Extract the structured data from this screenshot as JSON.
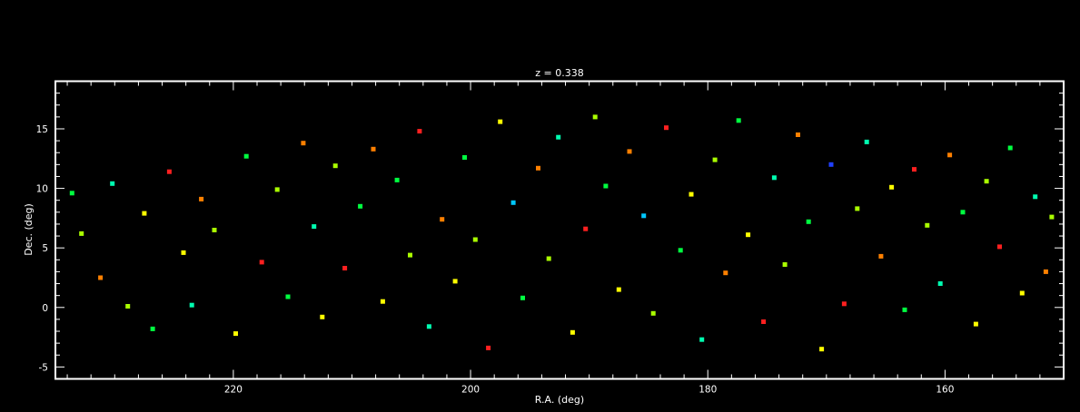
{
  "chart_data": {
    "type": "scatter",
    "title": "z = 0.338",
    "xlabel": "R.A. (deg)",
    "ylabel": "Dec. (deg)",
    "xlim": [
      235,
      150
    ],
    "ylim": [
      -6,
      19
    ],
    "x_axis_reversed": true,
    "xticks": [
      220,
      200,
      180,
      160
    ],
    "yticks": [
      -5,
      0,
      5,
      10,
      15
    ],
    "grid": false,
    "legend": "none",
    "background_color": "#000000",
    "axes_color": "#ffffff",
    "point_colors": [
      "#ff2020",
      "#ff8000",
      "#ffff00",
      "#aaff00",
      "#00ff40",
      "#00ffb0",
      "#00c8ff",
      "#2040ff"
    ],
    "series": [
      {
        "points": [
          [
            233.6,
            9.6,
            4
          ],
          [
            232.8,
            6.2,
            3
          ],
          [
            231.2,
            2.5,
            1
          ],
          [
            230.2,
            10.4,
            5
          ],
          [
            228.9,
            0.1,
            3
          ],
          [
            227.5,
            7.9,
            2
          ],
          [
            226.8,
            -1.8,
            4
          ],
          [
            225.4,
            11.4,
            0
          ],
          [
            224.2,
            4.6,
            2
          ],
          [
            223.5,
            0.2,
            5
          ],
          [
            222.7,
            9.1,
            1
          ],
          [
            221.6,
            6.5,
            3
          ],
          [
            219.8,
            -2.2,
            2
          ],
          [
            218.9,
            12.7,
            4
          ],
          [
            217.6,
            3.8,
            0
          ],
          [
            216.3,
            9.9,
            3
          ],
          [
            215.4,
            0.9,
            4
          ],
          [
            214.1,
            13.8,
            1
          ],
          [
            213.2,
            6.8,
            5
          ],
          [
            212.5,
            -0.8,
            2
          ],
          [
            211.4,
            11.9,
            3
          ],
          [
            210.6,
            3.3,
            0
          ],
          [
            209.3,
            8.5,
            4
          ],
          [
            208.2,
            13.3,
            1
          ],
          [
            207.4,
            0.5,
            2
          ],
          [
            206.2,
            10.7,
            4
          ],
          [
            205.1,
            4.4,
            3
          ],
          [
            204.3,
            14.8,
            0
          ],
          [
            203.5,
            -1.6,
            5
          ],
          [
            202.4,
            7.4,
            1
          ],
          [
            201.3,
            2.2,
            2
          ],
          [
            200.5,
            12.6,
            4
          ],
          [
            199.6,
            5.7,
            3
          ],
          [
            198.5,
            -3.4,
            0
          ],
          [
            197.5,
            15.6,
            2
          ],
          [
            196.4,
            8.8,
            6
          ],
          [
            195.6,
            0.8,
            4
          ],
          [
            194.3,
            11.7,
            1
          ],
          [
            193.4,
            4.1,
            3
          ],
          [
            192.6,
            14.3,
            5
          ],
          [
            191.4,
            -2.1,
            2
          ],
          [
            190.3,
            6.6,
            0
          ],
          [
            189.5,
            16.0,
            3
          ],
          [
            188.6,
            10.2,
            4
          ],
          [
            187.5,
            1.5,
            2
          ],
          [
            186.6,
            13.1,
            1
          ],
          [
            185.4,
            7.7,
            6
          ],
          [
            184.6,
            -0.5,
            3
          ],
          [
            183.5,
            15.1,
            0
          ],
          [
            182.3,
            4.8,
            4
          ],
          [
            181.4,
            9.5,
            2
          ],
          [
            180.5,
            -2.7,
            5
          ],
          [
            179.4,
            12.4,
            3
          ],
          [
            178.5,
            2.9,
            1
          ],
          [
            177.4,
            15.7,
            4
          ],
          [
            176.6,
            6.1,
            2
          ],
          [
            175.3,
            -1.2,
            0
          ],
          [
            174.4,
            10.9,
            5
          ],
          [
            173.5,
            3.6,
            3
          ],
          [
            172.4,
            14.5,
            1
          ],
          [
            171.5,
            7.2,
            4
          ],
          [
            170.4,
            -3.5,
            2
          ],
          [
            169.6,
            12.0,
            7
          ],
          [
            168.5,
            0.3,
            0
          ],
          [
            167.4,
            8.3,
            3
          ],
          [
            166.6,
            13.9,
            5
          ],
          [
            165.4,
            4.3,
            1
          ],
          [
            164.5,
            10.1,
            2
          ],
          [
            163.4,
            -0.2,
            4
          ],
          [
            162.6,
            11.6,
            0
          ],
          [
            161.5,
            6.9,
            3
          ],
          [
            160.4,
            2.0,
            5
          ],
          [
            159.6,
            12.8,
            1
          ],
          [
            158.5,
            8.0,
            4
          ],
          [
            157.4,
            -1.4,
            2
          ],
          [
            156.5,
            10.6,
            3
          ],
          [
            155.4,
            5.1,
            0
          ],
          [
            154.5,
            13.4,
            4
          ],
          [
            153.5,
            1.2,
            2
          ],
          [
            152.4,
            9.3,
            5
          ],
          [
            151.5,
            3.0,
            1
          ],
          [
            151.0,
            7.6,
            3
          ]
        ]
      }
    ]
  }
}
